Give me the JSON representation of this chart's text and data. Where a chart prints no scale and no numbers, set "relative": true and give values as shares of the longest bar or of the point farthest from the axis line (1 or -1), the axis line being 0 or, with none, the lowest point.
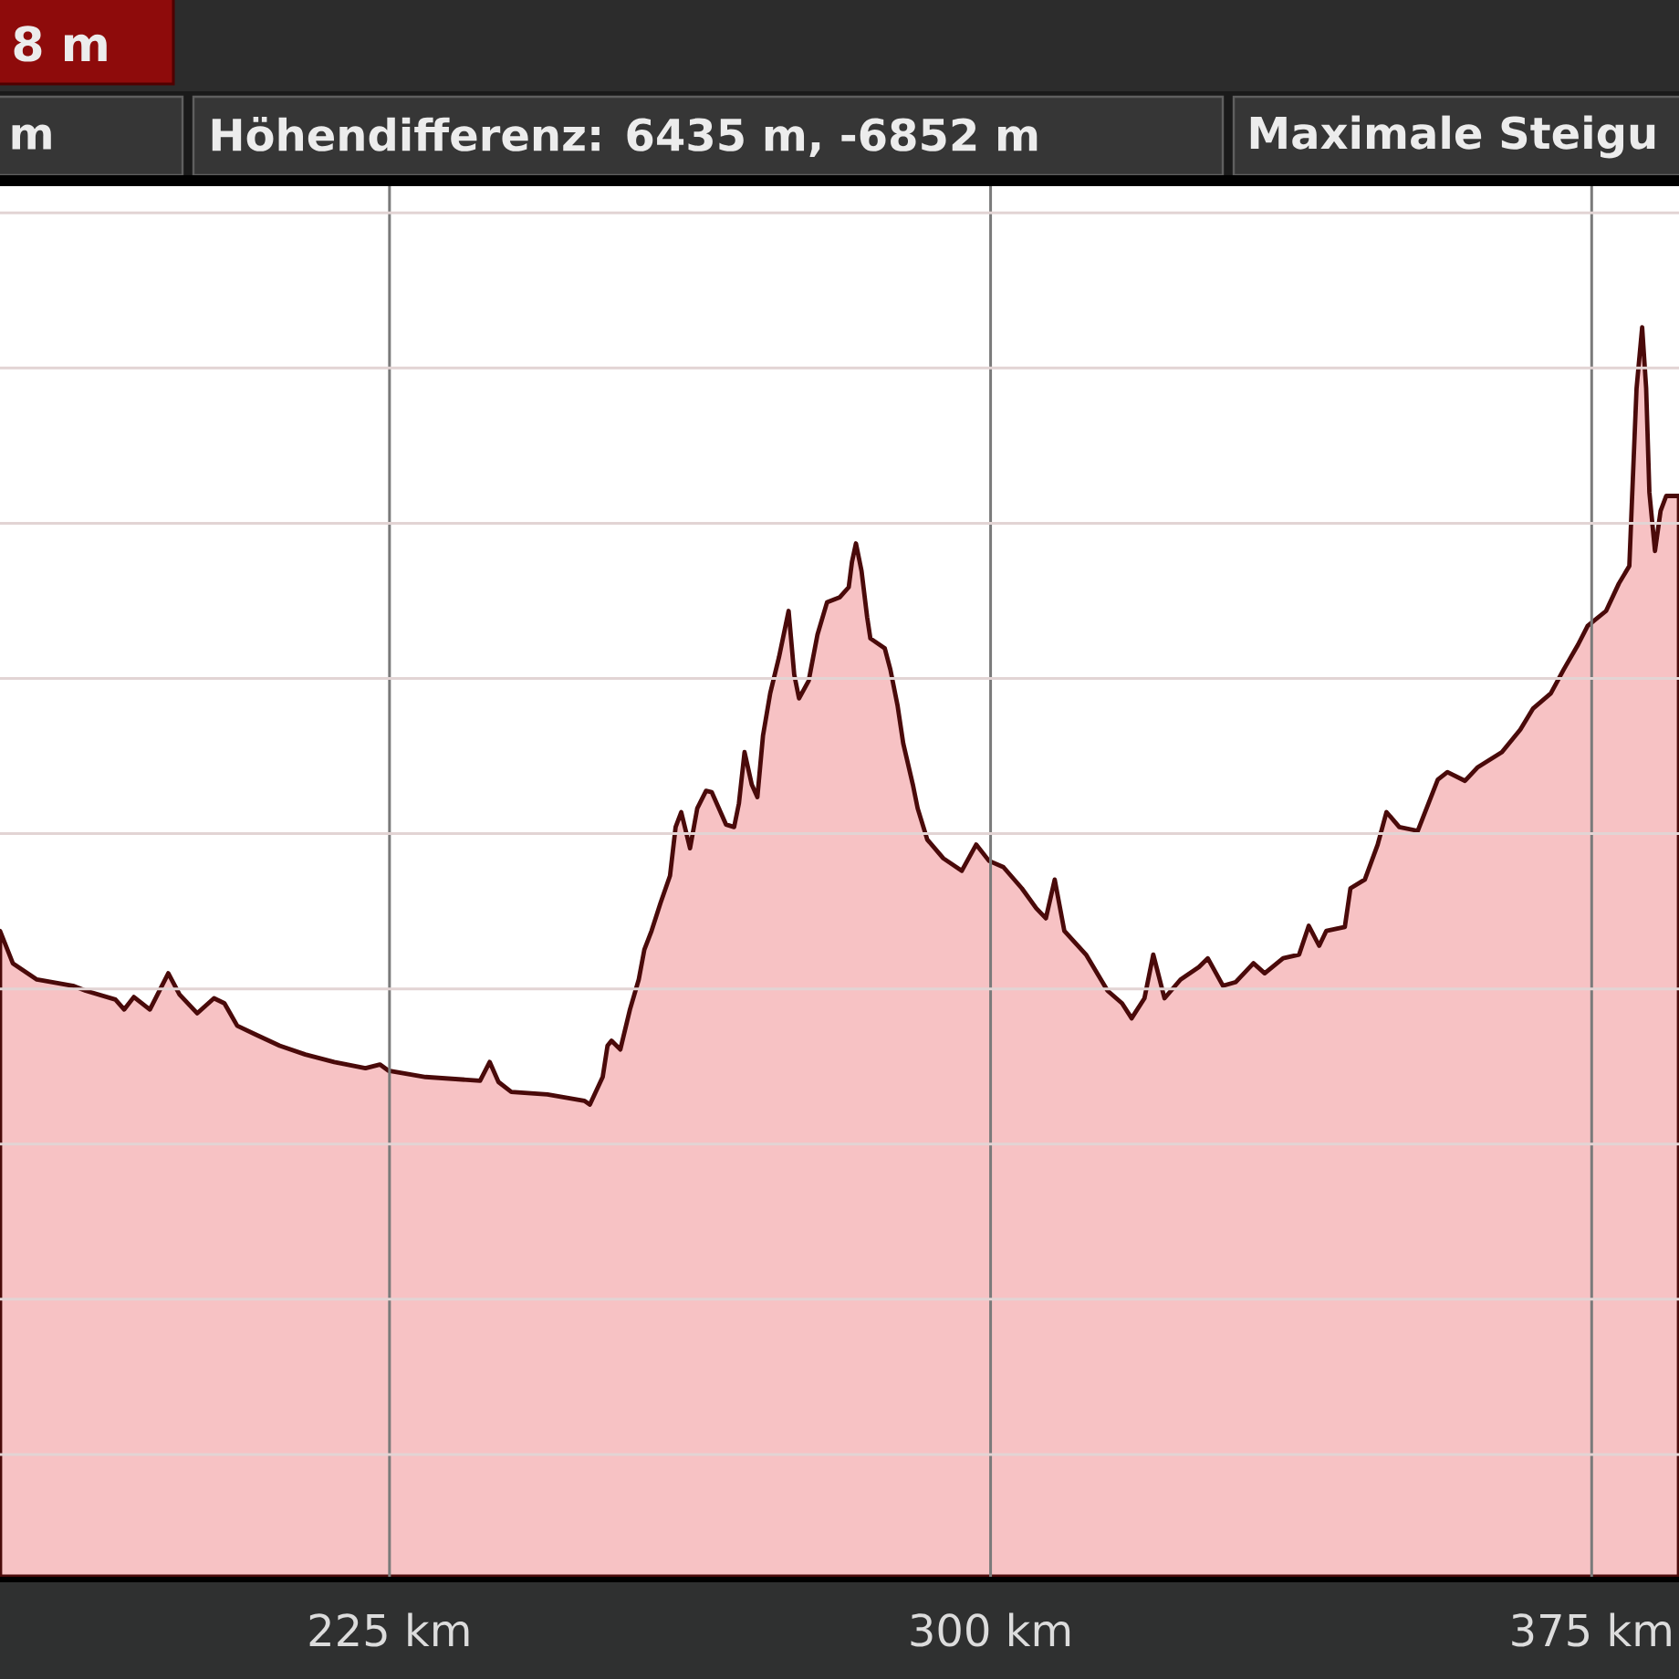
{
  "chart_data": {
    "type": "area",
    "relative": true,
    "color": "#f7c2c4",
    "line_style": "solid",
    "grid": true,
    "tick_labels": "x",
    "annotations": [
      "8 m",
      "m",
      "Höhendifferenz: 6435 m, -6852 m",
      "Maximale Steigu"
    ],
    "xlim": [
      176.4,
      385.9
    ],
    "xticks": [
      {
        "value": 225,
        "label": "225 km"
      },
      {
        "value": 300,
        "label": "300 km"
      },
      {
        "value": 375,
        "label": "375 km"
      }
    ],
    "x": [
      176.4,
      178.0,
      181.0,
      185.5,
      187.1,
      190.8,
      191.9,
      193.1,
      195.1,
      197.4,
      198.8,
      201.0,
      203.1,
      204.4,
      206.0,
      208.3,
      211.3,
      214.5,
      218.1,
      222.0,
      223.8,
      224.9,
      229.5,
      236.3,
      237.5,
      238.6,
      240.2,
      244.7,
      249.3,
      250.0,
      251.6,
      252.2,
      252.7,
      253.8,
      255.0,
      256.1,
      256.8,
      257.7,
      258.8,
      260.0,
      260.7,
      261.4,
      262.5,
      263.4,
      264.5,
      265.2,
      267.0,
      268.0,
      268.6,
      269.3,
      270.2,
      270.9,
      271.6,
      272.5,
      273.6,
      274.8,
      275.5,
      276.1,
      277.3,
      278.4,
      279.6,
      281.2,
      282.3,
      282.7,
      283.2,
      283.9,
      284.6,
      285.0,
      286.8,
      287.5,
      288.4,
      289.1,
      290.3,
      290.9,
      292.1,
      294.1,
      296.4,
      298.2,
      299.8,
      301.6,
      303.9,
      305.7,
      306.9,
      308.0,
      309.2,
      311.9,
      314.6,
      316.4,
      317.6,
      319.2,
      320.3,
      321.7,
      323.7,
      326.0,
      327.1,
      329.0,
      330.6,
      332.8,
      334.2,
      336.5,
      338.5,
      339.7,
      341.0,
      341.9,
      344.2,
      344.9,
      346.7,
      348.3,
      349.4,
      351.0,
      353.3,
      355.8,
      357.0,
      359.2,
      360.8,
      363.8,
      366.1,
      367.7,
      369.9,
      371.5,
      373.3,
      374.5,
      376.8,
      378.4,
      379.7,
      380.0,
      380.6,
      381.3,
      381.8,
      382.2,
      382.9,
      383.6,
      384.3,
      385.9
    ],
    "values": [
      0.517,
      0.491,
      0.478,
      0.473,
      0.469,
      0.462,
      0.454,
      0.464,
      0.454,
      0.483,
      0.466,
      0.451,
      0.463,
      0.459,
      0.441,
      0.434,
      0.425,
      0.418,
      0.412,
      0.407,
      0.41,
      0.405,
      0.4,
      0.397,
      0.412,
      0.396,
      0.388,
      0.386,
      0.381,
      0.378,
      0.4,
      0.425,
      0.429,
      0.422,
      0.454,
      0.478,
      0.502,
      0.517,
      0.539,
      0.561,
      0.6,
      0.612,
      0.583,
      0.615,
      0.629,
      0.628,
      0.602,
      0.6,
      0.619,
      0.66,
      0.634,
      0.624,
      0.673,
      0.707,
      0.736,
      0.773,
      0.722,
      0.703,
      0.717,
      0.754,
      0.78,
      0.784,
      0.792,
      0.812,
      0.827,
      0.805,
      0.768,
      0.751,
      0.743,
      0.726,
      0.697,
      0.667,
      0.634,
      0.615,
      0.59,
      0.575,
      0.565,
      0.586,
      0.573,
      0.568,
      0.551,
      0.535,
      0.527,
      0.558,
      0.517,
      0.498,
      0.469,
      0.459,
      0.447,
      0.463,
      0.498,
      0.463,
      0.478,
      0.488,
      0.495,
      0.473,
      0.476,
      0.491,
      0.483,
      0.495,
      0.498,
      0.521,
      0.505,
      0.517,
      0.52,
      0.551,
      0.558,
      0.586,
      0.612,
      0.6,
      0.597,
      0.638,
      0.644,
      0.637,
      0.648,
      0.66,
      0.678,
      0.695,
      0.707,
      0.726,
      0.746,
      0.761,
      0.773,
      0.795,
      0.809,
      0.857,
      0.951,
      1,
      0.951,
      0.868,
      0.821,
      0.853,
      0.865,
      0.865
    ]
  }
}
